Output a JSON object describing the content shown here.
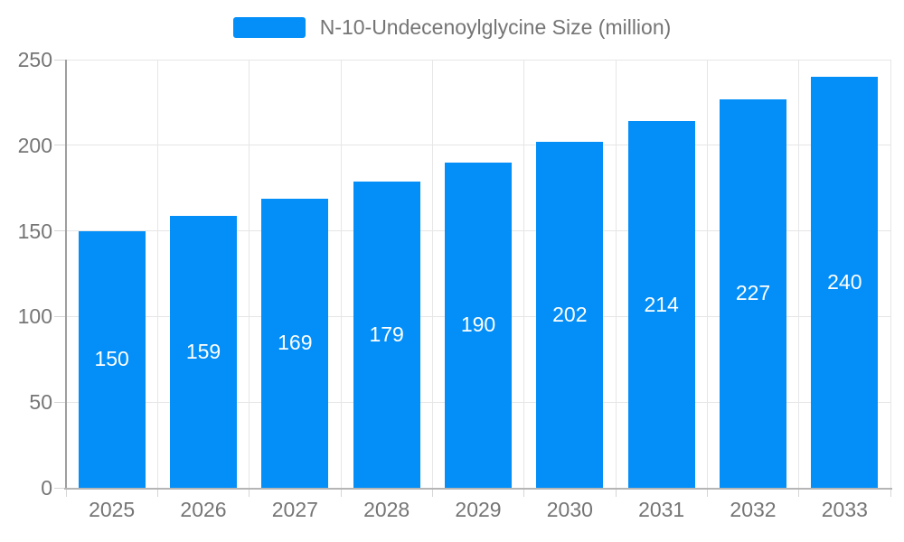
{
  "chart_data": {
    "type": "bar",
    "title": "N-10-Undecenoylglycine Size (million)",
    "categories": [
      "2025",
      "2026",
      "2027",
      "2028",
      "2029",
      "2030",
      "2031",
      "2032",
      "2033"
    ],
    "values": [
      150,
      159,
      169,
      179,
      190,
      202,
      214,
      227,
      240
    ],
    "series": [
      {
        "name": "N-10-Undecenoylglycine Size (million)",
        "values": [
          150,
          159,
          169,
          179,
          190,
          202,
          214,
          227,
          240
        ]
      }
    ],
    "xlabel": "",
    "ylabel": "",
    "ylim": [
      0,
      250
    ],
    "yticks": [
      0,
      50,
      100,
      150,
      200,
      250
    ],
    "grid": true,
    "legend_position": "top",
    "data_labels": "inside-center-white"
  },
  "colors": {
    "bar": "#048FF8",
    "grid": "#E6E6E6",
    "y_axis": "#9E9E9E",
    "x_axis": "#B5B5B5",
    "tick_text": "#757575",
    "bar_label_text": "#FFFFFF",
    "legend_text": "#757575"
  }
}
